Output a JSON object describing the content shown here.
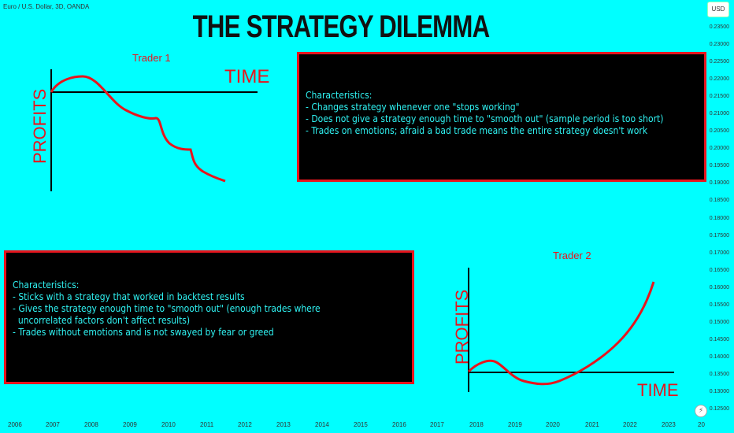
{
  "symbol": "Euro / U.S. Dollar, 3D, OANDA",
  "title": "THE STRATEGY DILEMMA",
  "currency_button": "USD",
  "price_ticks": [
    "0.23500",
    "0.23000",
    "0.22500",
    "0.22000",
    "0.21500",
    "0.21000",
    "0.20500",
    "0.20000",
    "0.19500",
    "0.19000",
    "0.18500",
    "0.18000",
    "0.17500",
    "0.17000",
    "0.16500",
    "0.16000",
    "0.15500",
    "0.15000",
    "0.14500",
    "0.14000",
    "0.13500",
    "0.13000",
    "0.12500"
  ],
  "year_ticks": [
    "2006",
    "2007",
    "2008",
    "2009",
    "2010",
    "2011",
    "2012",
    "2013",
    "2014",
    "2015",
    "2016",
    "2017",
    "2018",
    "2019",
    "2020",
    "2021",
    "2022",
    "2023",
    "20"
  ],
  "trader1": {
    "label": "Trader 1",
    "x_axis": "TIME",
    "y_axis": "PROFITS",
    "box_lines": [
      "Characteristics:",
      "- Changes strategy whenever one \"stops working\"",
      "- Does not give a strategy enough time to \"smooth out\" (sample period is too short)",
      "- Trades on emotions; afraid a bad trade means the entire strategy doesn't work"
    ]
  },
  "trader2": {
    "label": "Trader 2",
    "x_axis": "TIME",
    "y_axis": "PROFITS",
    "box_lines": [
      "Characteristics:",
      "- Sticks with a strategy that worked in backtest results",
      "- Gives the strategy enough time to \"smooth out\" (enough trades where",
      "  uncorrelated factors don't affect results)",
      "- Trades without emotions and is not swayed by fear or greed"
    ]
  },
  "colors": {
    "background": "#00ffff",
    "accent_red": "#e8141c",
    "box_text": "#2ff2f2"
  }
}
